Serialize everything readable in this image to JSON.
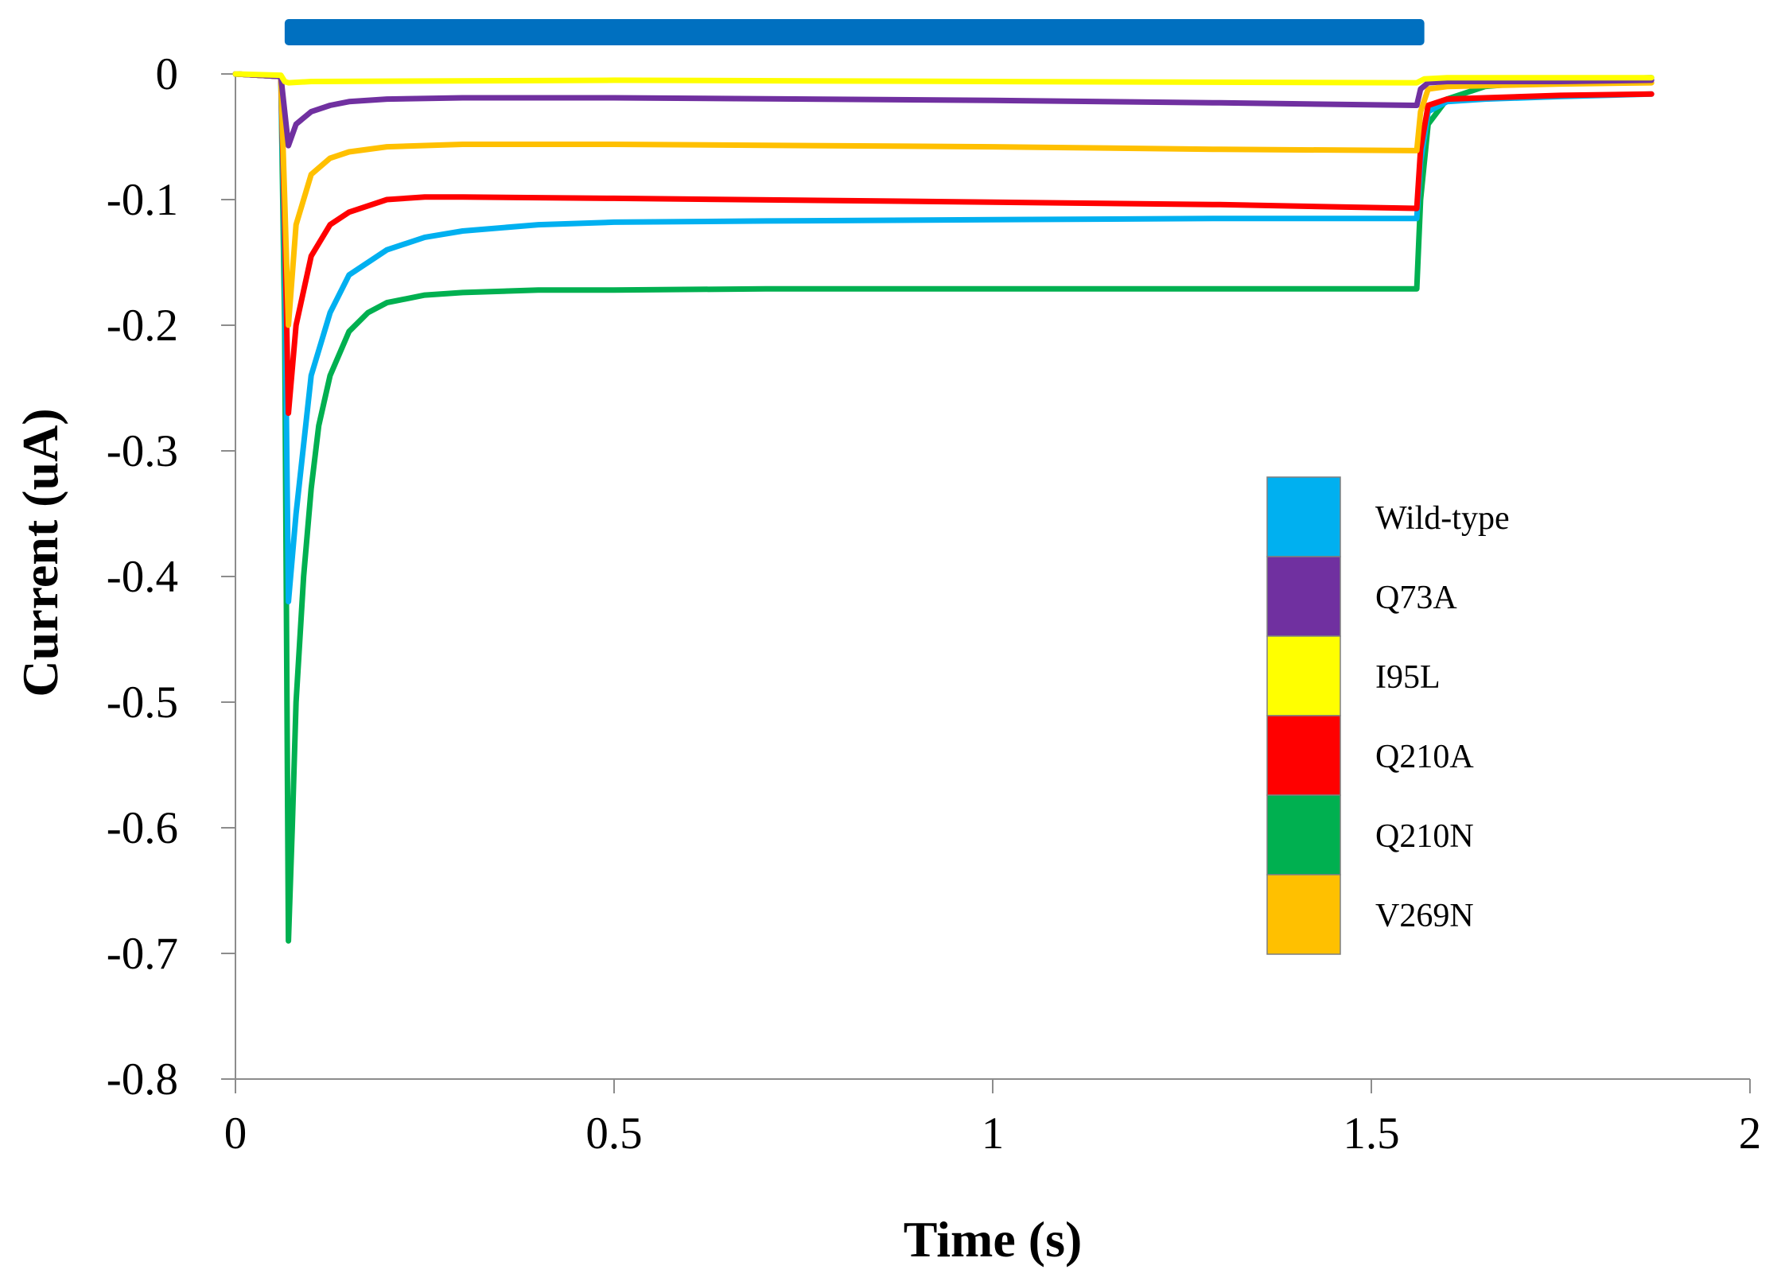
{
  "chart_data": {
    "type": "line",
    "title": "",
    "xlabel": "Time (s)",
    "ylabel": "Current (uA)",
    "xlim": [
      0,
      2
    ],
    "ylim": [
      -0.8,
      0
    ],
    "xticks": [
      "0",
      "0.5",
      "1",
      "1.5",
      "2"
    ],
    "yticks": [
      "0",
      "-0.1",
      "-0.2",
      "-0.3",
      "-0.4",
      "-0.5",
      "-0.6",
      "-0.7",
      "-0.8"
    ],
    "grid": false,
    "legend_position": "right",
    "application_bar": {
      "start": 0.065,
      "end": 1.57,
      "color": "#0070C0"
    },
    "series": [
      {
        "name": "Wild-type",
        "color": "#00B0F0",
        "x": [
          0,
          0.06,
          0.065,
          0.07,
          0.08,
          0.1,
          0.125,
          0.15,
          0.2,
          0.25,
          0.3,
          0.4,
          0.5,
          0.7,
          1.0,
          1.3,
          1.56,
          1.565,
          1.575,
          1.6,
          1.65,
          1.75,
          1.87
        ],
        "y": [
          0,
          -0.002,
          -0.15,
          -0.42,
          -0.35,
          -0.24,
          -0.19,
          -0.16,
          -0.14,
          -0.13,
          -0.125,
          -0.12,
          -0.118,
          -0.117,
          -0.116,
          -0.115,
          -0.115,
          -0.07,
          -0.03,
          -0.022,
          -0.02,
          -0.018,
          -0.016
        ]
      },
      {
        "name": "Q73A",
        "color": "#7030A0",
        "x": [
          0,
          0.06,
          0.065,
          0.07,
          0.08,
          0.1,
          0.125,
          0.15,
          0.2,
          0.3,
          0.5,
          1.0,
          1.3,
          1.56,
          1.565,
          1.575,
          1.6,
          1.75,
          1.87
        ],
        "y": [
          0,
          -0.002,
          -0.03,
          -0.057,
          -0.04,
          -0.03,
          -0.025,
          -0.022,
          -0.02,
          -0.019,
          -0.019,
          -0.021,
          -0.023,
          -0.025,
          -0.012,
          -0.007,
          -0.006,
          -0.006,
          -0.005
        ]
      },
      {
        "name": "I95L",
        "color": "#FFFF00",
        "x": [
          0,
          0.06,
          0.065,
          0.07,
          0.1,
          0.5,
          1.0,
          1.56,
          1.57,
          1.6,
          1.87
        ],
        "y": [
          0,
          -0.001,
          -0.006,
          -0.007,
          -0.006,
          -0.005,
          -0.006,
          -0.007,
          -0.004,
          -0.003,
          -0.003
        ]
      },
      {
        "name": "Q210A",
        "color": "#FF0000",
        "x": [
          0,
          0.06,
          0.065,
          0.07,
          0.08,
          0.1,
          0.125,
          0.15,
          0.2,
          0.25,
          0.3,
          0.5,
          1.0,
          1.3,
          1.56,
          1.565,
          1.575,
          1.6,
          1.65,
          1.75,
          1.87
        ],
        "y": [
          0,
          -0.002,
          -0.12,
          -0.27,
          -0.2,
          -0.145,
          -0.12,
          -0.11,
          -0.1,
          -0.098,
          -0.098,
          -0.099,
          -0.102,
          -0.104,
          -0.107,
          -0.06,
          -0.025,
          -0.02,
          -0.019,
          -0.017,
          -0.016
        ]
      },
      {
        "name": "Q210N",
        "color": "#00B050",
        "x": [
          0,
          0.06,
          0.065,
          0.07,
          0.075,
          0.08,
          0.09,
          0.1,
          0.11,
          0.125,
          0.15,
          0.175,
          0.2,
          0.25,
          0.3,
          0.4,
          0.5,
          0.7,
          1.0,
          1.3,
          1.56,
          1.565,
          1.575,
          1.6,
          1.65,
          1.75,
          1.87
        ],
        "y": [
          0,
          -0.002,
          -0.2,
          -0.69,
          -0.6,
          -0.5,
          -0.4,
          -0.33,
          -0.28,
          -0.24,
          -0.205,
          -0.19,
          -0.182,
          -0.176,
          -0.174,
          -0.172,
          -0.172,
          -0.171,
          -0.171,
          -0.171,
          -0.171,
          -0.1,
          -0.04,
          -0.02,
          -0.01,
          -0.005,
          -0.003
        ]
      },
      {
        "name": "V269N",
        "color": "#FFC000",
        "x": [
          0,
          0.06,
          0.065,
          0.07,
          0.08,
          0.1,
          0.125,
          0.15,
          0.2,
          0.3,
          0.5,
          1.0,
          1.3,
          1.56,
          1.565,
          1.575,
          1.6,
          1.75,
          1.87
        ],
        "y": [
          0,
          -0.002,
          -0.1,
          -0.2,
          -0.12,
          -0.08,
          -0.067,
          -0.062,
          -0.058,
          -0.056,
          -0.056,
          -0.058,
          -0.06,
          -0.061,
          -0.03,
          -0.012,
          -0.01,
          -0.008,
          -0.007
        ]
      }
    ]
  }
}
